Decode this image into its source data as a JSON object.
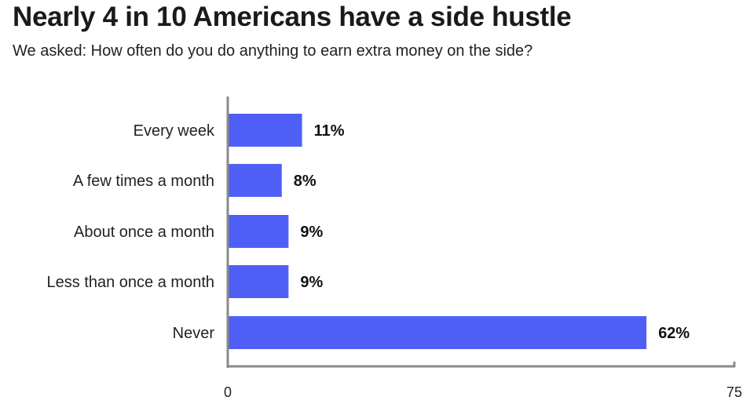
{
  "chart_data": {
    "type": "bar",
    "orientation": "horizontal",
    "title": "Nearly 4 in 10 Americans have a side hustle",
    "subtitle": "We asked: How often do you do anything to earn extra money on the side?",
    "categories": [
      "Every week",
      "A few times a month",
      "About once a month",
      "Less than once a month",
      "Never"
    ],
    "values": [
      11,
      8,
      9,
      9,
      62
    ],
    "value_labels": [
      "11%",
      "8%",
      "9%",
      "9%",
      "62%"
    ],
    "xlim": [
      0,
      75
    ],
    "xticks": [
      "0",
      "75"
    ],
    "bar_color": "#4f5ff5",
    "axis_color": "#8a8a8a",
    "grid": false
  }
}
